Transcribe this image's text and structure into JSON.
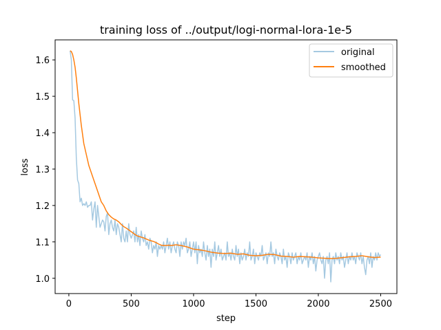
{
  "chart_data": {
    "type": "line",
    "title": "training loss of ../output/logi-normal-lora-1e-5",
    "xlabel": "step",
    "ylabel": "loss",
    "xlim": [
      -110,
      2630
    ],
    "ylim": [
      0.958,
      1.655
    ],
    "xticks": [
      0,
      500,
      1000,
      1500,
      2000,
      2500
    ],
    "yticks": [
      1.0,
      1.1,
      1.2,
      1.3,
      1.4,
      1.5,
      1.6
    ],
    "grid": false,
    "legend_position": "top-right",
    "series": [
      {
        "name": "original",
        "color": "#1f77b4",
        "alpha": 0.4,
        "x": [
          10,
          20,
          30,
          40,
          50,
          60,
          70,
          80,
          90,
          100,
          110,
          120,
          130,
          140,
          150,
          160,
          170,
          180,
          190,
          200,
          210,
          220,
          230,
          240,
          250,
          260,
          270,
          280,
          290,
          300,
          310,
          320,
          330,
          340,
          350,
          360,
          370,
          380,
          390,
          400,
          410,
          420,
          430,
          440,
          450,
          460,
          470,
          480,
          490,
          500,
          510,
          520,
          530,
          540,
          550,
          560,
          570,
          580,
          590,
          600,
          610,
          620,
          630,
          640,
          650,
          660,
          670,
          680,
          690,
          700,
          710,
          720,
          730,
          740,
          750,
          760,
          770,
          780,
          790,
          800,
          810,
          820,
          830,
          840,
          850,
          860,
          870,
          880,
          890,
          900,
          910,
          920,
          930,
          940,
          950,
          960,
          970,
          980,
          990,
          1000,
          1010,
          1020,
          1030,
          1040,
          1050,
          1060,
          1070,
          1080,
          1090,
          1100,
          1110,
          1120,
          1130,
          1140,
          1150,
          1160,
          1170,
          1180,
          1190,
          1200,
          1210,
          1220,
          1230,
          1240,
          1250,
          1260,
          1270,
          1280,
          1290,
          1300,
          1310,
          1320,
          1330,
          1340,
          1350,
          1360,
          1370,
          1380,
          1390,
          1400,
          1410,
          1420,
          1430,
          1440,
          1450,
          1460,
          1470,
          1480,
          1490,
          1500,
          1510,
          1520,
          1530,
          1540,
          1550,
          1560,
          1570,
          1580,
          1590,
          1600,
          1610,
          1620,
          1630,
          1640,
          1650,
          1660,
          1670,
          1680,
          1690,
          1700,
          1710,
          1720,
          1730,
          1740,
          1750,
          1760,
          1770,
          1780,
          1790,
          1800,
          1810,
          1820,
          1830,
          1840,
          1850,
          1860,
          1870,
          1880,
          1890,
          1900,
          1910,
          1920,
          1930,
          1940,
          1950,
          1960,
          1970,
          1980,
          1990,
          2000,
          2010,
          2020,
          2030,
          2040,
          2050,
          2060,
          2070,
          2080,
          2090,
          2100,
          2110,
          2120,
          2130,
          2140,
          2150,
          2160,
          2170,
          2180,
          2190,
          2200,
          2210,
          2220,
          2230,
          2240,
          2250,
          2260,
          2270,
          2280,
          2290,
          2300,
          2310,
          2320,
          2330,
          2340,
          2350,
          2360,
          2370,
          2380,
          2390,
          2400,
          2410,
          2420,
          2430,
          2440,
          2450,
          2460,
          2470,
          2480,
          2490,
          2500
        ],
        "y": [
          1.625,
          1.6,
          1.49,
          1.488,
          1.44,
          1.33,
          1.27,
          1.26,
          1.21,
          1.22,
          1.2,
          1.205,
          1.2,
          1.21,
          1.195,
          1.2,
          1.2,
          1.21,
          1.16,
          1.19,
          1.21,
          1.14,
          1.2,
          1.17,
          1.14,
          1.15,
          1.16,
          1.155,
          1.13,
          1.17,
          1.18,
          1.12,
          1.15,
          1.16,
          1.14,
          1.13,
          1.16,
          1.12,
          1.15,
          1.14,
          1.12,
          1.1,
          1.15,
          1.11,
          1.1,
          1.13,
          1.1,
          1.15,
          1.12,
          1.11,
          1.12,
          1.13,
          1.1,
          1.14,
          1.1,
          1.12,
          1.09,
          1.13,
          1.11,
          1.1,
          1.12,
          1.09,
          1.1,
          1.08,
          1.11,
          1.1,
          1.07,
          1.09,
          1.08,
          1.1,
          1.06,
          1.09,
          1.08,
          1.09,
          1.08,
          1.1,
          1.07,
          1.09,
          1.11,
          1.08,
          1.1,
          1.07,
          1.09,
          1.1,
          1.08,
          1.07,
          1.1,
          1.09,
          1.06,
          1.1,
          1.08,
          1.1,
          1.09,
          1.11,
          1.07,
          1.08,
          1.1,
          1.06,
          1.08,
          1.1,
          1.07,
          1.1,
          1.04,
          1.09,
          1.07,
          1.08,
          1.06,
          1.1,
          1.07,
          1.05,
          1.09,
          1.06,
          1.08,
          1.03,
          1.08,
          1.06,
          1.1,
          1.05,
          1.07,
          1.09,
          1.06,
          1.08,
          1.05,
          1.06,
          1.07,
          1.05,
          1.1,
          1.06,
          1.07,
          1.05,
          1.08,
          1.06,
          1.05,
          1.09,
          1.06,
          1.08,
          1.04,
          1.07,
          1.05,
          1.06,
          1.08,
          1.05,
          1.07,
          1.06,
          1.1,
          1.05,
          1.06,
          1.08,
          1.04,
          1.07,
          1.06,
          1.05,
          1.07,
          1.06,
          1.09,
          1.05,
          1.06,
          1.07,
          1.04,
          1.07,
          1.06,
          1.1,
          1.06,
          1.07,
          1.04,
          1.08,
          1.06,
          1.05,
          1.07,
          1.06,
          1.04,
          1.08,
          1.05,
          1.06,
          1.03,
          1.07,
          1.06,
          1.04,
          1.07,
          1.05,
          1.06,
          1.07,
          1.04,
          1.06,
          1.05,
          1.07,
          1.04,
          1.05,
          1.06,
          1.05,
          1.07,
          1.03,
          1.06,
          1.05,
          1.07,
          1.04,
          1.06,
          1.02,
          1.05,
          1.06,
          1.07,
          1.05,
          1.04,
          1.06,
          1.0,
          1.05,
          1.06,
          1.04,
          1.07,
          0.99,
          1.05,
          1.06,
          1.04,
          1.07,
          1.05,
          1.06,
          1.04,
          1.07,
          1.05,
          1.06,
          1.03,
          1.05,
          1.07,
          1.04,
          1.06,
          1.05,
          1.07,
          1.05,
          1.06,
          1.04,
          1.07,
          1.06,
          1.05,
          1.07,
          1.04,
          1.06,
          1.03,
          1.01,
          1.05,
          1.06,
          1.04,
          1.07,
          1.03,
          1.06,
          1.05,
          1.07,
          1.05,
          1.07,
          1.06,
          1.065
        ]
      },
      {
        "name": "smoothed",
        "color": "#ff7f0e",
        "alpha": 1.0,
        "x": [
          10,
          20,
          30,
          40,
          50,
          60,
          70,
          80,
          90,
          100,
          120,
          140,
          160,
          180,
          200,
          220,
          240,
          260,
          280,
          300,
          320,
          340,
          360,
          380,
          400,
          420,
          440,
          460,
          480,
          500,
          520,
          540,
          560,
          580,
          600,
          620,
          640,
          660,
          680,
          700,
          720,
          740,
          760,
          780,
          800,
          820,
          840,
          860,
          880,
          900,
          950,
          1000,
          1050,
          1100,
          1150,
          1200,
          1250,
          1300,
          1350,
          1400,
          1450,
          1500,
          1550,
          1600,
          1650,
          1700,
          1750,
          1800,
          1850,
          1900,
          1950,
          2000,
          2050,
          2100,
          2150,
          2200,
          2250,
          2300,
          2350,
          2400,
          2450,
          2500
        ],
        "y": [
          1.625,
          1.623,
          1.615,
          1.6,
          1.58,
          1.55,
          1.515,
          1.48,
          1.45,
          1.42,
          1.37,
          1.34,
          1.31,
          1.29,
          1.27,
          1.25,
          1.23,
          1.21,
          1.2,
          1.185,
          1.175,
          1.168,
          1.163,
          1.16,
          1.155,
          1.148,
          1.142,
          1.138,
          1.133,
          1.128,
          1.123,
          1.118,
          1.115,
          1.113,
          1.111,
          1.108,
          1.105,
          1.103,
          1.101,
          1.098,
          1.094,
          1.091,
          1.09,
          1.09,
          1.091,
          1.09,
          1.091,
          1.092,
          1.091,
          1.09,
          1.086,
          1.08,
          1.078,
          1.075,
          1.071,
          1.069,
          1.068,
          1.069,
          1.066,
          1.067,
          1.063,
          1.062,
          1.063,
          1.066,
          1.065,
          1.061,
          1.06,
          1.058,
          1.06,
          1.059,
          1.058,
          1.056,
          1.055,
          1.054,
          1.055,
          1.057,
          1.059,
          1.06,
          1.062,
          1.059,
          1.057,
          1.058
        ]
      }
    ]
  }
}
